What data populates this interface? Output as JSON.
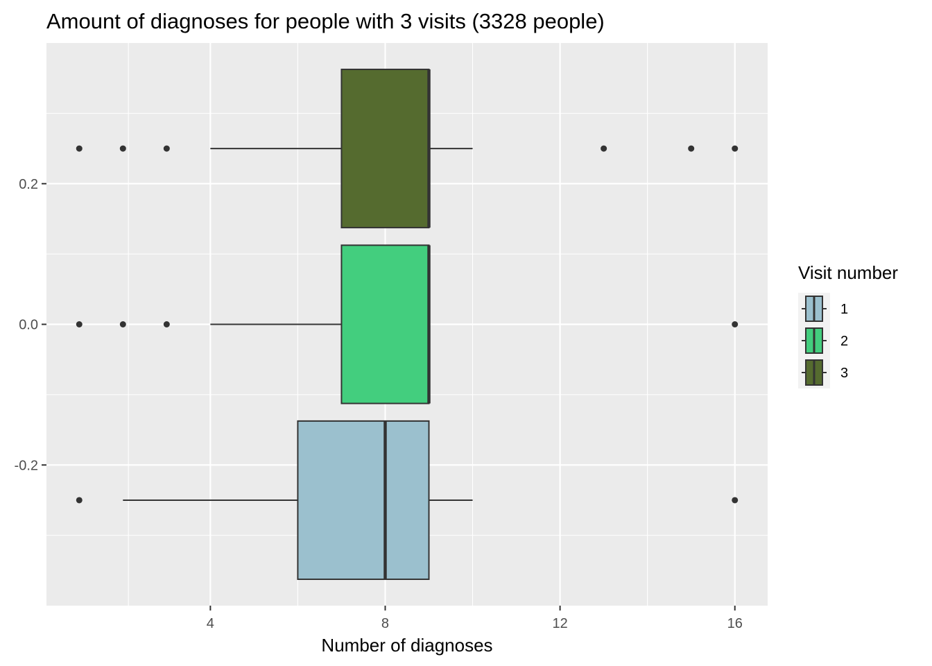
{
  "chart_data": {
    "type": "boxplot",
    "orientation": "horizontal",
    "title": "Amount of diagnoses for people with 3 visits (3328 people)",
    "xlabel": "Number of diagnoses",
    "ylabel": "",
    "xlim": [
      0.25,
      16.75
    ],
    "ylim": [
      -0.4,
      0.4
    ],
    "x_ticks": [
      4,
      8,
      12,
      16
    ],
    "x_tick_labels": [
      "4",
      "8",
      "12",
      "16"
    ],
    "y_ticks": [
      -0.2,
      0.0,
      0.2
    ],
    "y_tick_labels": [
      "-0.2",
      "0.0",
      "0.2"
    ],
    "grid": true,
    "legend": {
      "title": "Visit number",
      "position": "right",
      "entries": [
        "1",
        "2",
        "3"
      ]
    },
    "series": [
      {
        "name": "1",
        "color": "#9bc0ce",
        "y_center": -0.25,
        "y_range": [
          -0.3625,
          -0.1375
        ],
        "min": 2,
        "q1": 6,
        "median": 8,
        "q3": 9,
        "max": 10,
        "outliers": [
          1,
          16
        ]
      },
      {
        "name": "2",
        "color": "#43ce7e",
        "y_center": 0.0,
        "y_range": [
          -0.1125,
          0.1125
        ],
        "min": 4,
        "q1": 7,
        "median": 9,
        "q3": 9,
        "max": 9,
        "outliers": [
          1,
          2,
          3,
          16
        ]
      },
      {
        "name": "3",
        "color": "#556b2f",
        "y_center": 0.25,
        "y_range": [
          0.1375,
          0.3625
        ],
        "min": 4,
        "q1": 7,
        "median": 9,
        "q3": 9,
        "max": 10,
        "outliers": [
          1,
          2,
          3,
          13,
          15,
          16
        ]
      }
    ],
    "panel_color": "#ebebeb",
    "line_color": "#333333"
  }
}
